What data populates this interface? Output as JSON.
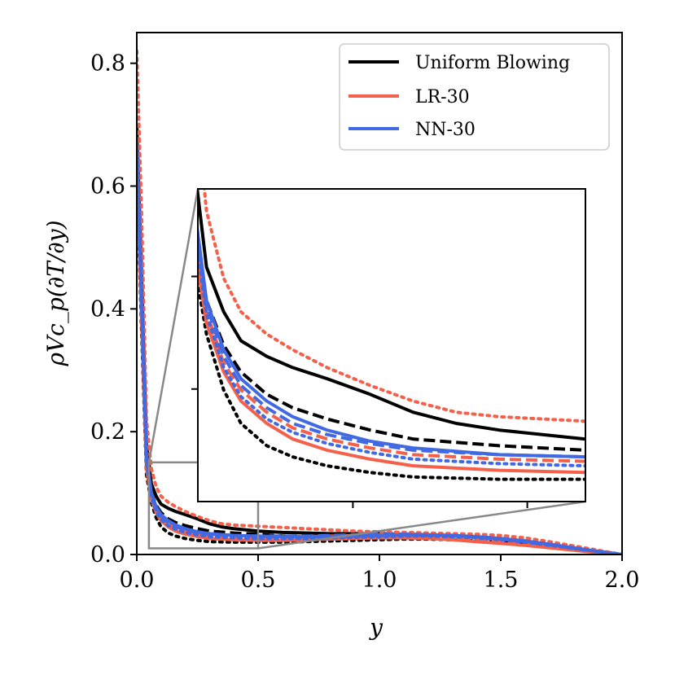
{
  "chart_data": {
    "type": "line",
    "xlabel": "y",
    "ylabel": "ρVc_p(∂T/∂y)",
    "xlim": [
      0.0,
      2.0
    ],
    "ylim": [
      0.0,
      0.85
    ],
    "xticks": [
      "0.0",
      "0.5",
      "1.0",
      "1.5",
      "2.0"
    ],
    "yticks": [
      "0.0",
      "0.2",
      "0.4",
      "0.6",
      "0.8"
    ],
    "legend": {
      "placement": "top-right",
      "entries": [
        {
          "label": "Uniform Blowing",
          "color": "#000000"
        },
        {
          "label": "LR-30",
          "color": "#f4604a"
        },
        {
          "label": "NN-30",
          "color": "#4169e1"
        }
      ]
    },
    "series": [
      {
        "name": "Uniform Blowing solid",
        "color": "#000000",
        "style": "solid",
        "x": [
          0.0,
          0.02,
          0.04,
          0.06,
          0.08,
          0.1,
          0.13,
          0.16,
          0.2,
          0.25,
          0.3,
          0.35,
          0.4,
          0.5,
          0.6,
          0.7,
          0.8,
          0.9,
          1.0,
          1.1,
          1.2,
          1.3,
          1.4,
          1.5,
          1.6,
          1.7,
          1.8,
          1.9,
          2.0
        ],
        "y": [
          0.7,
          0.45,
          0.18,
          0.115,
          0.095,
          0.082,
          0.075,
          0.07,
          0.065,
          0.058,
          0.05,
          0.045,
          0.042,
          0.038,
          0.036,
          0.035,
          0.034,
          0.034,
          0.034,
          0.033,
          0.032,
          0.031,
          0.029,
          0.026,
          0.022,
          0.016,
          0.01,
          0.005,
          0.0
        ]
      },
      {
        "name": "Uniform Blowing dashed",
        "color": "#000000",
        "style": "dashed",
        "x": [
          0.0,
          0.02,
          0.04,
          0.06,
          0.08,
          0.1,
          0.13,
          0.16,
          0.2,
          0.25,
          0.3,
          0.4,
          0.5,
          0.6,
          0.7,
          0.8,
          0.9,
          1.0,
          1.1,
          1.2,
          1.3,
          1.4,
          1.5,
          1.6,
          1.7,
          1.8,
          1.9,
          2.0
        ],
        "y": [
          0.66,
          0.4,
          0.15,
          0.1,
          0.08,
          0.068,
          0.058,
          0.052,
          0.047,
          0.042,
          0.038,
          0.035,
          0.033,
          0.03,
          0.028,
          0.027,
          0.028,
          0.03,
          0.031,
          0.031,
          0.03,
          0.028,
          0.025,
          0.021,
          0.016,
          0.01,
          0.005,
          0.0
        ]
      },
      {
        "name": "Uniform Blowing dotted",
        "color": "#000000",
        "style": "dotted",
        "x": [
          0.0,
          0.02,
          0.04,
          0.06,
          0.08,
          0.1,
          0.13,
          0.16,
          0.2,
          0.25,
          0.3,
          0.4,
          0.5,
          0.6,
          0.7,
          0.8,
          0.9,
          1.0,
          1.1,
          1.2,
          1.3,
          1.4,
          1.5,
          1.6,
          1.7,
          1.8,
          1.9,
          2.0
        ],
        "y": [
          0.62,
          0.36,
          0.13,
          0.085,
          0.06,
          0.045,
          0.035,
          0.03,
          0.026,
          0.023,
          0.021,
          0.02,
          0.02,
          0.02,
          0.021,
          0.022,
          0.023,
          0.024,
          0.025,
          0.025,
          0.024,
          0.022,
          0.02,
          0.017,
          0.013,
          0.009,
          0.004,
          0.0
        ]
      },
      {
        "name": "LR-30 solid",
        "color": "#f4604a",
        "style": "solid",
        "x": [
          0.0,
          0.02,
          0.04,
          0.06,
          0.08,
          0.1,
          0.13,
          0.16,
          0.2,
          0.25,
          0.3,
          0.4,
          0.5,
          0.6,
          0.7,
          0.8,
          0.9,
          1.0,
          1.1,
          1.2,
          1.3,
          1.4,
          1.5,
          1.6,
          1.7,
          1.8,
          1.9,
          2.0
        ],
        "y": [
          0.64,
          0.38,
          0.14,
          0.09,
          0.068,
          0.055,
          0.045,
          0.038,
          0.033,
          0.029,
          0.026,
          0.024,
          0.023,
          0.023,
          0.024,
          0.025,
          0.026,
          0.027,
          0.027,
          0.026,
          0.024,
          0.021,
          0.018,
          0.015,
          0.011,
          0.007,
          0.003,
          0.0
        ]
      },
      {
        "name": "LR-30 dashed",
        "color": "#f4604a",
        "style": "dashed",
        "x": [
          0.0,
          0.02,
          0.04,
          0.06,
          0.08,
          0.1,
          0.13,
          0.16,
          0.2,
          0.25,
          0.3,
          0.4,
          0.5,
          0.6,
          0.7,
          0.8,
          0.9,
          1.0,
          1.1,
          1.2,
          1.3,
          1.4,
          1.5,
          1.6,
          1.7,
          1.8,
          1.9,
          2.0
        ],
        "y": [
          0.65,
          0.39,
          0.145,
          0.095,
          0.072,
          0.06,
          0.05,
          0.043,
          0.038,
          0.034,
          0.031,
          0.029,
          0.028,
          0.028,
          0.029,
          0.03,
          0.031,
          0.032,
          0.032,
          0.031,
          0.029,
          0.026,
          0.022,
          0.018,
          0.013,
          0.008,
          0.004,
          0.0
        ]
      },
      {
        "name": "LR-30 dotted",
        "color": "#f4604a",
        "style": "dotted",
        "x": [
          0.0,
          0.02,
          0.04,
          0.06,
          0.08,
          0.1,
          0.13,
          0.16,
          0.2,
          0.25,
          0.3,
          0.35,
          0.4,
          0.5,
          0.6,
          0.7,
          0.8,
          0.9,
          1.0,
          1.1,
          1.2,
          1.3,
          1.4,
          1.5,
          1.6,
          1.7,
          1.8,
          1.9,
          2.0
        ],
        "y": [
          0.82,
          0.55,
          0.22,
          0.14,
          0.11,
          0.095,
          0.085,
          0.078,
          0.07,
          0.062,
          0.055,
          0.05,
          0.048,
          0.046,
          0.044,
          0.042,
          0.04,
          0.038,
          0.037,
          0.036,
          0.035,
          0.034,
          0.033,
          0.031,
          0.027,
          0.021,
          0.014,
          0.007,
          0.0
        ]
      },
      {
        "name": "NN-30 solid",
        "color": "#4169e1",
        "style": "solid",
        "x": [
          0.0,
          0.02,
          0.04,
          0.06,
          0.08,
          0.1,
          0.13,
          0.16,
          0.2,
          0.25,
          0.3,
          0.4,
          0.5,
          0.6,
          0.7,
          0.8,
          0.9,
          1.0,
          1.1,
          1.2,
          1.3,
          1.4,
          1.5,
          1.6,
          1.7,
          1.8,
          1.9,
          2.0
        ],
        "y": [
          0.68,
          0.42,
          0.16,
          0.1,
          0.078,
          0.065,
          0.055,
          0.048,
          0.042,
          0.037,
          0.034,
          0.031,
          0.03,
          0.029,
          0.029,
          0.029,
          0.03,
          0.031,
          0.032,
          0.032,
          0.031,
          0.029,
          0.026,
          0.022,
          0.017,
          0.011,
          0.005,
          0.0
        ]
      },
      {
        "name": "NN-30 dashed",
        "color": "#4169e1",
        "style": "dashed",
        "x": [
          0.0,
          0.02,
          0.04,
          0.06,
          0.08,
          0.1,
          0.13,
          0.16,
          0.2,
          0.25,
          0.3,
          0.4,
          0.5,
          0.6,
          0.7,
          0.8,
          0.9,
          1.0,
          1.1,
          1.2,
          1.3,
          1.4,
          1.5,
          1.6,
          1.7,
          1.8,
          1.9,
          2.0
        ],
        "y": [
          0.67,
          0.41,
          0.155,
          0.098,
          0.075,
          0.062,
          0.052,
          0.045,
          0.04,
          0.036,
          0.033,
          0.031,
          0.03,
          0.03,
          0.03,
          0.031,
          0.032,
          0.033,
          0.033,
          0.032,
          0.03,
          0.028,
          0.025,
          0.021,
          0.016,
          0.01,
          0.005,
          0.0
        ]
      },
      {
        "name": "NN-30 dotted",
        "color": "#4169e1",
        "style": "dotted",
        "x": [
          0.0,
          0.02,
          0.04,
          0.06,
          0.08,
          0.1,
          0.13,
          0.16,
          0.2,
          0.25,
          0.3,
          0.4,
          0.5,
          0.6,
          0.7,
          0.8,
          0.9,
          1.0,
          1.1,
          1.2,
          1.3,
          1.4,
          1.5,
          1.6,
          1.7,
          1.8,
          1.9,
          2.0
        ],
        "y": [
          0.66,
          0.4,
          0.15,
          0.094,
          0.07,
          0.057,
          0.047,
          0.041,
          0.036,
          0.032,
          0.029,
          0.027,
          0.026,
          0.026,
          0.026,
          0.027,
          0.028,
          0.029,
          0.03,
          0.03,
          0.029,
          0.027,
          0.024,
          0.02,
          0.015,
          0.01,
          0.005,
          0.0
        ]
      }
    ],
    "inset": {
      "xlim": [
        0.05,
        0.5
      ],
      "ylim": [
        0.01,
        0.15
      ],
      "ticks_shown": false
    }
  }
}
